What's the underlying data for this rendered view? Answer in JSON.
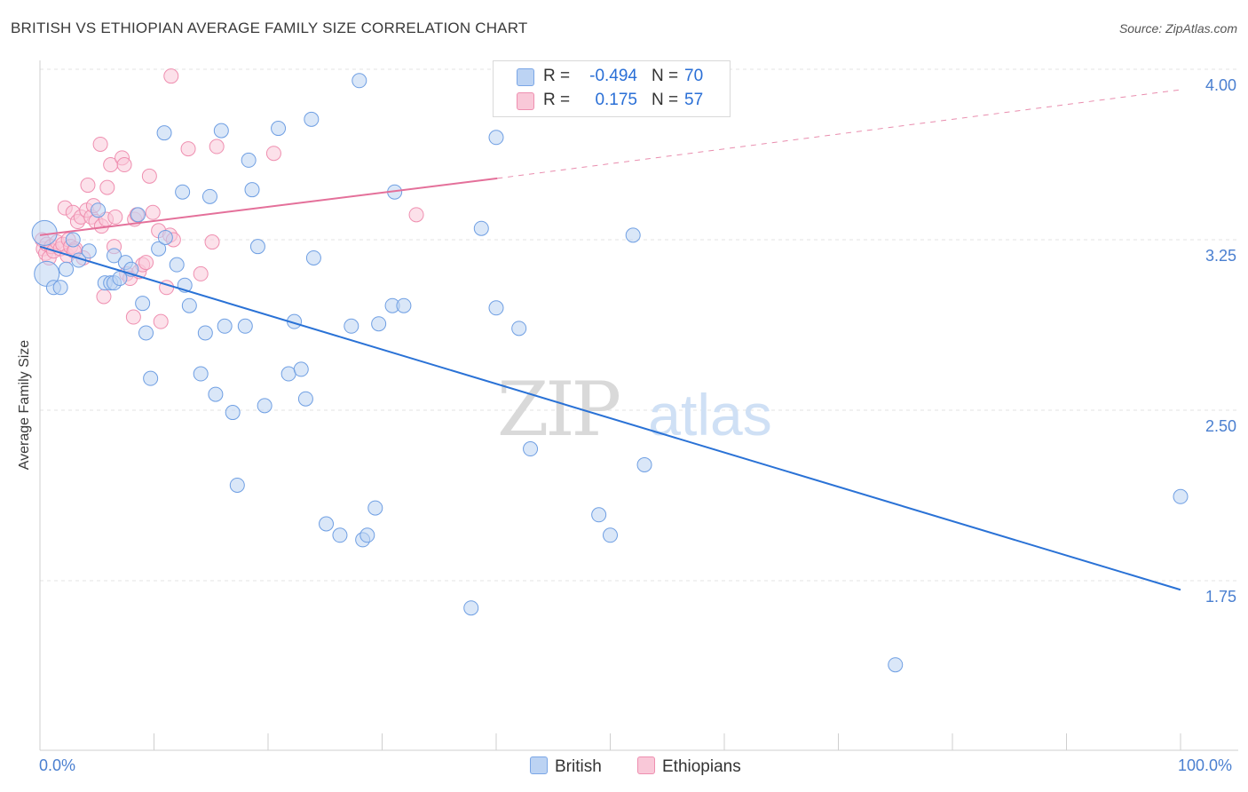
{
  "title": "BRITISH VS ETHIOPIAN AVERAGE FAMILY SIZE CORRELATION CHART",
  "source": "Source: ZipAtlas.com",
  "watermark": {
    "zip": "ZIP",
    "atlas": "atlas"
  },
  "colors": {
    "british": "#6f9fe3",
    "british_fill": "#bcd3f3",
    "british_line": "#2a72d6",
    "ethiopians": "#ef8fb0",
    "ethiopians_fill": "#f9c8d8",
    "ethiopians_line": "#e4709a",
    "tick_label": "#4a7fd0",
    "grid": "#e3e3e3"
  },
  "legend": {
    "british": {
      "r_label": "R =",
      "r_value": "-0.494",
      "n_label": "N =",
      "n_value": "70"
    },
    "ethiopians": {
      "r_label": "R =",
      "r_value": "0.175",
      "n_label": "N =",
      "n_value": "57"
    }
  },
  "bottom_legend": {
    "british": "British",
    "ethiopians": "Ethiopians"
  },
  "x_tick_labels": {
    "min": "0.0%",
    "max": "100.0%"
  },
  "chart_data": {
    "type": "scatter",
    "title": "BRITISH VS ETHIOPIAN AVERAGE FAMILY SIZE CORRELATION CHART",
    "xlabel": "",
    "ylabel": "Average Family Size",
    "xlim": [
      0,
      100
    ],
    "ylim": [
      1.0,
      4.1
    ],
    "y_ticks": [
      {
        "value": 1.75,
        "label": "1.75"
      },
      {
        "value": 2.5,
        "label": "2.50"
      },
      {
        "value": 3.25,
        "label": "3.25"
      },
      {
        "value": 4.0,
        "label": "4.00"
      }
    ],
    "grid": true,
    "legend_position": "top-center",
    "series": [
      {
        "name": "British",
        "r": -0.494,
        "n": 70,
        "trend": {
          "x": [
            0,
            100
          ],
          "y": [
            3.22,
            1.71
          ]
        },
        "points": [
          [
            0.4,
            3.28
          ],
          [
            0.6,
            3.1
          ],
          [
            1.2,
            3.04
          ],
          [
            1.8,
            3.04
          ],
          [
            2.3,
            3.12
          ],
          [
            2.9,
            3.25
          ],
          [
            3.4,
            3.16
          ],
          [
            4.3,
            3.2
          ],
          [
            5.1,
            3.38
          ],
          [
            5.7,
            3.06
          ],
          [
            6.2,
            3.06
          ],
          [
            6.5,
            3.18
          ],
          [
            6.5,
            3.06
          ],
          [
            7.0,
            3.08
          ],
          [
            7.5,
            3.15
          ],
          [
            8.0,
            3.12
          ],
          [
            8.6,
            3.36
          ],
          [
            9.0,
            2.97
          ],
          [
            9.3,
            2.84
          ],
          [
            9.7,
            2.64
          ],
          [
            10.4,
            3.21
          ],
          [
            10.9,
            3.72
          ],
          [
            11.0,
            3.26
          ],
          [
            12.0,
            3.14
          ],
          [
            12.5,
            3.46
          ],
          [
            12.7,
            3.05
          ],
          [
            13.1,
            2.96
          ],
          [
            14.1,
            2.66
          ],
          [
            14.5,
            2.84
          ],
          [
            14.9,
            3.44
          ],
          [
            15.4,
            2.57
          ],
          [
            15.9,
            3.73
          ],
          [
            16.2,
            2.87
          ],
          [
            16.9,
            2.49
          ],
          [
            17.3,
            2.17
          ],
          [
            18.0,
            2.87
          ],
          [
            18.3,
            3.6
          ],
          [
            18.6,
            3.47
          ],
          [
            19.1,
            3.22
          ],
          [
            19.7,
            2.52
          ],
          [
            20.9,
            3.74
          ],
          [
            21.8,
            2.66
          ],
          [
            22.3,
            2.89
          ],
          [
            22.9,
            2.68
          ],
          [
            23.3,
            2.55
          ],
          [
            23.8,
            3.78
          ],
          [
            24.0,
            3.17
          ],
          [
            25.1,
            2.0
          ],
          [
            26.3,
            1.95
          ],
          [
            27.3,
            2.87
          ],
          [
            28.0,
            3.95
          ],
          [
            28.3,
            1.93
          ],
          [
            28.7,
            1.95
          ],
          [
            29.4,
            2.07
          ],
          [
            29.7,
            2.88
          ],
          [
            30.9,
            2.96
          ],
          [
            31.1,
            3.46
          ],
          [
            31.9,
            2.96
          ],
          [
            37.8,
            1.63
          ],
          [
            38.7,
            3.3
          ],
          [
            40.0,
            2.95
          ],
          [
            40.0,
            3.7
          ],
          [
            42.0,
            2.86
          ],
          [
            43.0,
            2.33
          ],
          [
            49.0,
            2.04
          ],
          [
            50.0,
            1.95
          ],
          [
            52.0,
            3.27
          ],
          [
            53.0,
            2.26
          ],
          [
            75.0,
            1.38
          ],
          [
            100.0,
            2.12
          ]
        ]
      },
      {
        "name": "Ethiopians",
        "r": 0.175,
        "n": 57,
        "trend_solid": {
          "x": [
            0,
            40.1
          ],
          "y": [
            3.27,
            3.52
          ]
        },
        "trend_dashed": {
          "x": [
            40.1,
            100
          ],
          "y": [
            3.52,
            3.91
          ]
        },
        "points": [
          [
            0.2,
            3.25
          ],
          [
            0.3,
            3.21
          ],
          [
            0.5,
            3.19
          ],
          [
            0.6,
            3.23
          ],
          [
            0.8,
            3.17
          ],
          [
            1.0,
            3.22
          ],
          [
            1.2,
            3.2
          ],
          [
            1.5,
            3.24
          ],
          [
            1.8,
            3.21
          ],
          [
            2.0,
            3.23
          ],
          [
            2.2,
            3.39
          ],
          [
            2.4,
            3.18
          ],
          [
            2.5,
            3.25
          ],
          [
            2.7,
            3.22
          ],
          [
            2.9,
            3.37
          ],
          [
            3.1,
            3.21
          ],
          [
            3.3,
            3.33
          ],
          [
            3.6,
            3.35
          ],
          [
            3.8,
            3.17
          ],
          [
            4.1,
            3.38
          ],
          [
            4.2,
            3.49
          ],
          [
            4.5,
            3.35
          ],
          [
            4.7,
            3.4
          ],
          [
            4.9,
            3.33
          ],
          [
            5.3,
            3.67
          ],
          [
            5.4,
            3.31
          ],
          [
            5.6,
            3.0
          ],
          [
            5.8,
            3.34
          ],
          [
            5.9,
            3.48
          ],
          [
            6.2,
            3.58
          ],
          [
            6.5,
            3.22
          ],
          [
            6.6,
            3.35
          ],
          [
            7.2,
            3.61
          ],
          [
            7.4,
            3.58
          ],
          [
            7.6,
            3.1
          ],
          [
            7.9,
            3.08
          ],
          [
            8.2,
            2.91
          ],
          [
            8.3,
            3.34
          ],
          [
            8.5,
            3.36
          ],
          [
            8.7,
            3.11
          ],
          [
            9.0,
            3.14
          ],
          [
            9.3,
            3.15
          ],
          [
            9.6,
            3.53
          ],
          [
            9.9,
            3.37
          ],
          [
            10.4,
            3.29
          ],
          [
            10.6,
            2.89
          ],
          [
            11.1,
            3.04
          ],
          [
            11.4,
            3.27
          ],
          [
            11.5,
            3.97
          ],
          [
            11.7,
            3.25
          ],
          [
            13.0,
            3.65
          ],
          [
            14.1,
            3.1
          ],
          [
            15.1,
            3.24
          ],
          [
            15.5,
            3.66
          ],
          [
            20.5,
            3.63
          ],
          [
            33.0,
            3.36
          ],
          [
            3.0,
            3.2
          ]
        ]
      }
    ]
  }
}
